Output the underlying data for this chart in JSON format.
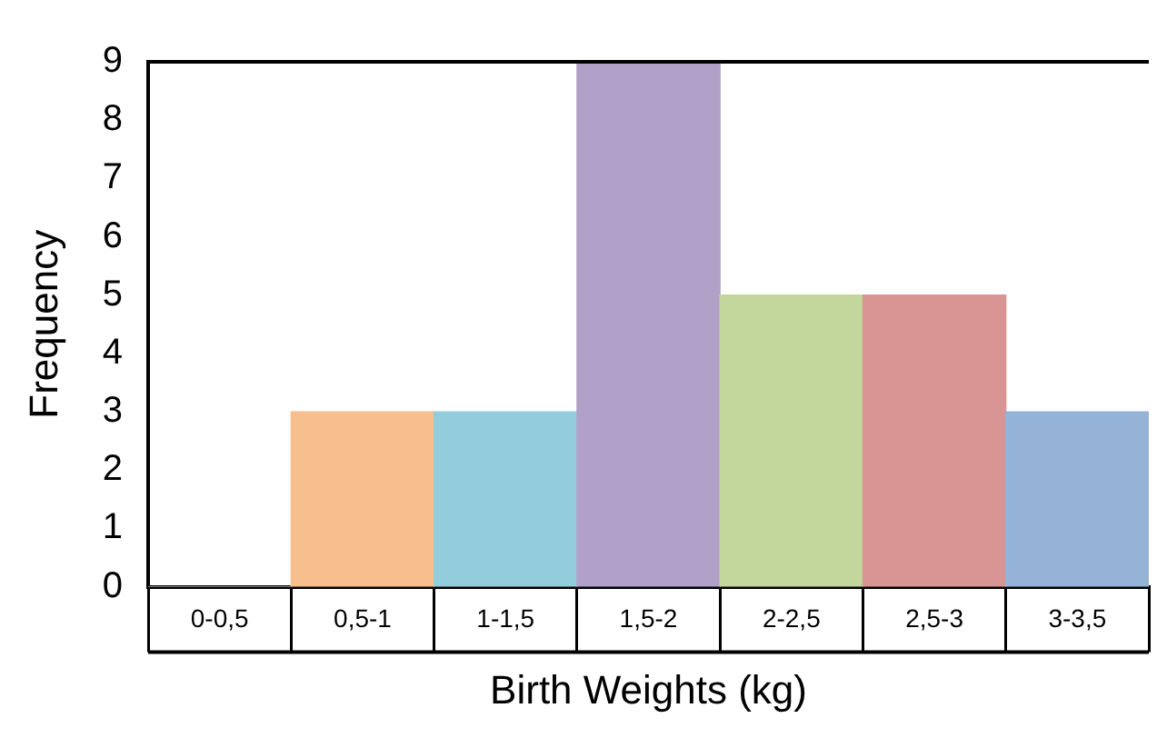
{
  "chart_data": {
    "type": "bar",
    "xlabel": "Birth Weights (kg)",
    "ylabel": "Frequency",
    "categories": [
      "0-0,5",
      "0,5-1",
      "1-1,5",
      "1,5-2",
      "2-2,5",
      "2,5-3",
      "3-3,5"
    ],
    "values": [
      0,
      3,
      3,
      9,
      5,
      5,
      3
    ],
    "colors": [
      "#ffffff",
      "#f8bf8e",
      "#93ccdb",
      "#b1a0c7",
      "#c3d69b",
      "#d99594",
      "#95b3d7"
    ],
    "ylim": [
      0,
      9
    ],
    "yticks": [
      0,
      1,
      2,
      3,
      4,
      5,
      6,
      7,
      8,
      9
    ],
    "grid": false,
    "legend": false
  }
}
